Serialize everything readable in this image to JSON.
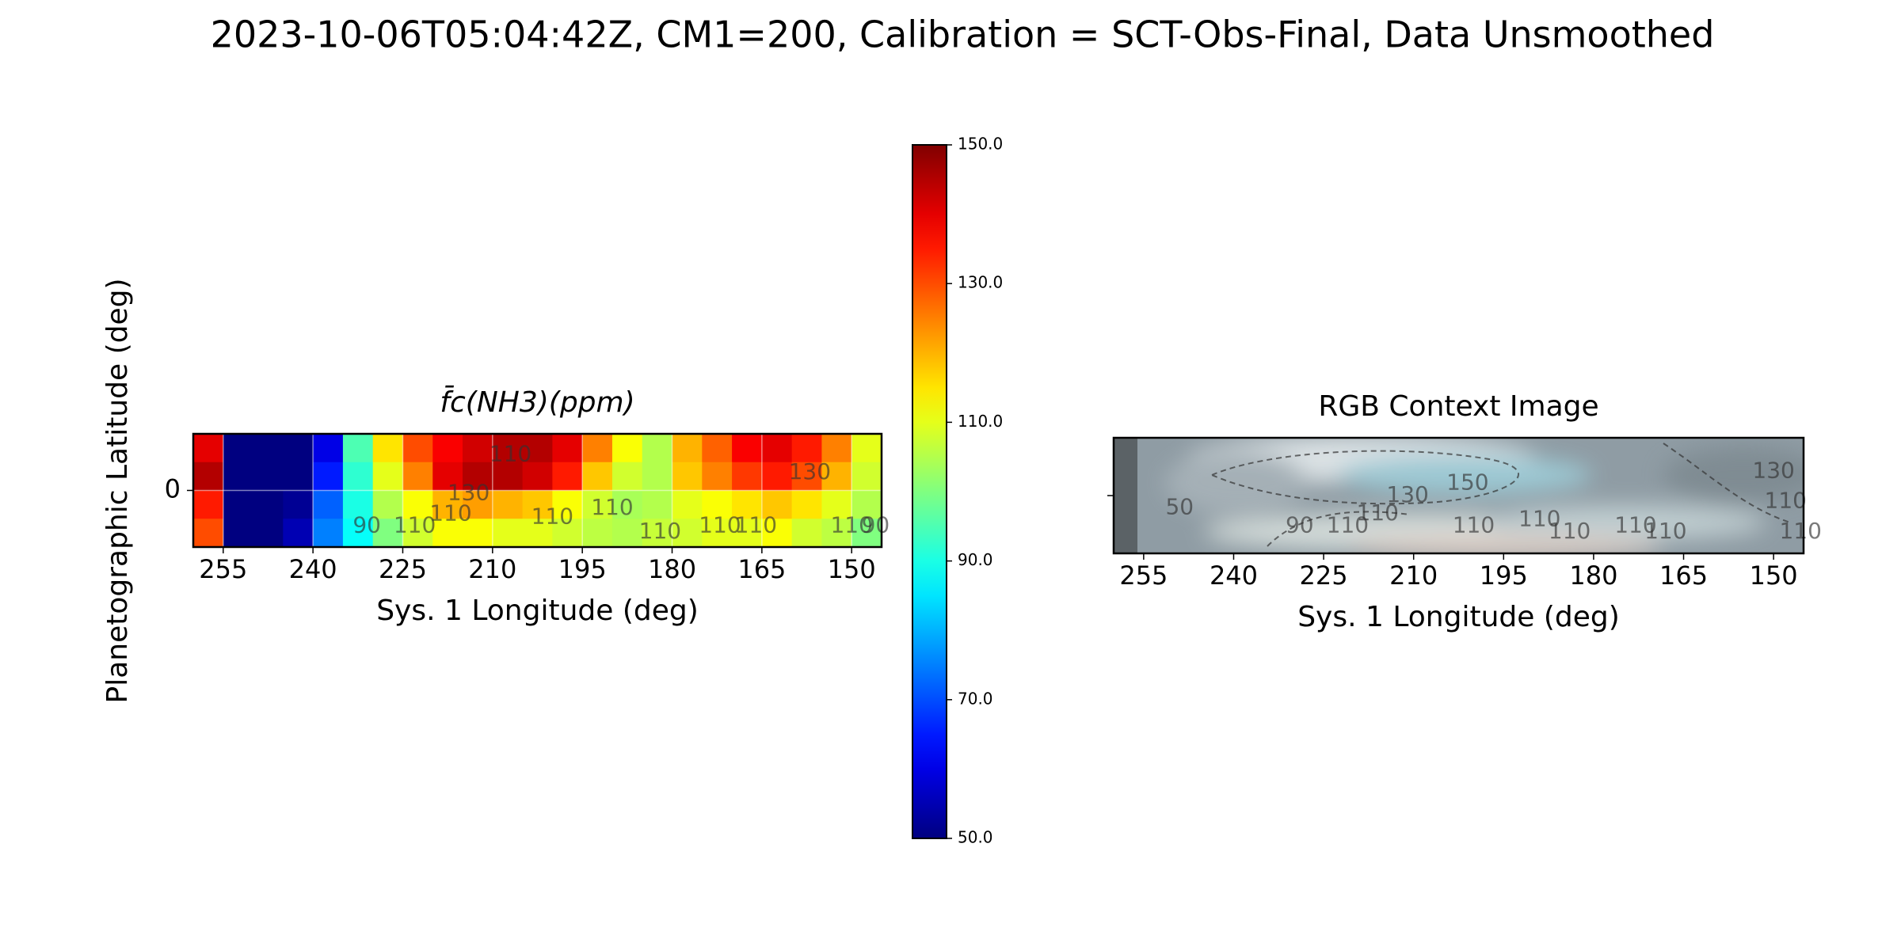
{
  "title": "2023-10-06T05:04:42Z, CM1=200, Calibration = SCT-Obs-Final, Data Unsmoothed",
  "chart_data": [
    {
      "type": "heatmap",
      "title": "f̄c(NH3)(ppm)",
      "xlabel": "Sys. 1 Longitude (deg)",
      "ylabel": "Planetographic Latitude (deg)",
      "xlim": [
        260,
        145
      ],
      "ylim": [
        -9.5,
        9.5
      ],
      "xticks": [
        255,
        240,
        225,
        210,
        195,
        180,
        165,
        150
      ],
      "yticks": [
        0
      ],
      "grid": true,
      "colormap": "jet",
      "x": [
        257.5,
        252.5,
        247.5,
        242.5,
        237.5,
        232.5,
        227.5,
        222.5,
        217.5,
        212.5,
        207.5,
        202.5,
        197.5,
        192.5,
        187.5,
        182.5,
        177.5,
        172.5,
        167.5,
        162.5,
        157.5,
        152.5,
        147.5
      ],
      "y": [
        7.125,
        2.375,
        -2.375,
        -7.125
      ],
      "z": [
        [
          140,
          50,
          50,
          50,
          60,
          95,
          115,
          130,
          138,
          142,
          145,
          145,
          140,
          125,
          112,
          105,
          120,
          128,
          138,
          140,
          135,
          125,
          110
        ],
        [
          145,
          50,
          50,
          50,
          65,
          92,
          110,
          125,
          140,
          145,
          145,
          142,
          135,
          118,
          108,
          105,
          118,
          125,
          132,
          135,
          130,
          120,
          108
        ],
        [
          135,
          50,
          50,
          52,
          72,
          90,
          105,
          112,
          120,
          122,
          120,
          118,
          112,
          108,
          104,
          105,
          110,
          112,
          115,
          118,
          115,
          110,
          105
        ],
        [
          130,
          50,
          50,
          55,
          75,
          88,
          100,
          108,
          112,
          112,
          110,
          110,
          108,
          106,
          105,
          107,
          108,
          110,
          110,
          112,
          108,
          106,
          100
        ]
      ],
      "colorbar": {
        "lim": [
          50,
          150
        ],
        "ticks": [
          {
            "value": 50,
            "label": "50.0"
          },
          {
            "value": 70,
            "label": "70.0"
          },
          {
            "value": 90,
            "label": "90.0"
          },
          {
            "value": 110,
            "label": "110.0"
          },
          {
            "value": 130,
            "label": "130.0"
          },
          {
            "value": 150,
            "label": "150.0"
          }
        ]
      },
      "annotations": [
        {
          "text": "130",
          "x": 214,
          "y": -0.5
        },
        {
          "text": "110",
          "x": 207,
          "y": 6
        },
        {
          "text": "90",
          "x": 231,
          "y": -6
        },
        {
          "text": "110",
          "x": 223,
          "y": -6
        },
        {
          "text": "110",
          "x": 217,
          "y": -4
        },
        {
          "text": "110",
          "x": 200,
          "y": -4.5
        },
        {
          "text": "110",
          "x": 190,
          "y": -3
        },
        {
          "text": "110",
          "x": 182,
          "y": -7
        },
        {
          "text": "110",
          "x": 172,
          "y": -6
        },
        {
          "text": "110",
          "x": 166,
          "y": -6
        },
        {
          "text": "130",
          "x": 157,
          "y": 3
        },
        {
          "text": "110",
          "x": 150,
          "y": -6
        },
        {
          "text": "90",
          "x": 146,
          "y": -6
        }
      ]
    },
    {
      "type": "image",
      "title": "RGB Context Image",
      "xlabel": "Sys. 1 Longitude (deg)",
      "xlim": [
        260,
        145
      ],
      "ylim": [
        -9.5,
        9.5
      ],
      "xticks": [
        255,
        240,
        225,
        210,
        195,
        180,
        165,
        150
      ],
      "yticks": [
        0
      ],
      "annotations": [
        {
          "text": "50",
          "x": 249,
          "y": -2
        },
        {
          "text": "90",
          "x": 229,
          "y": -5
        },
        {
          "text": "110",
          "x": 221,
          "y": -5
        },
        {
          "text": "110",
          "x": 216,
          "y": -3
        },
        {
          "text": "130",
          "x": 211,
          "y": 0
        },
        {
          "text": "150",
          "x": 201,
          "y": 2
        },
        {
          "text": "110",
          "x": 200,
          "y": -5
        },
        {
          "text": "110",
          "x": 189,
          "y": -4
        },
        {
          "text": "110",
          "x": 184,
          "y": -6
        },
        {
          "text": "110",
          "x": 173,
          "y": -5
        },
        {
          "text": "110",
          "x": 168,
          "y": -6
        },
        {
          "text": "130",
          "x": 150,
          "y": 4
        },
        {
          "text": "110",
          "x": 148,
          "y": -1
        },
        {
          "text": "110",
          "x": 145.5,
          "y": -6
        }
      ]
    }
  ]
}
